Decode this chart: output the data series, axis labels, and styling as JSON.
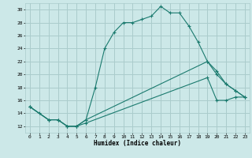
{
  "title": "",
  "xlabel": "Humidex (Indice chaleur)",
  "bg_color": "#cce8e8",
  "grid_color": "#aacccc",
  "line_color": "#1a7a6e",
  "xlim": [
    -0.5,
    23.5
  ],
  "ylim": [
    11,
    31
  ],
  "yticks": [
    12,
    14,
    16,
    18,
    20,
    22,
    24,
    26,
    28,
    30
  ],
  "xticks": [
    0,
    1,
    2,
    3,
    4,
    5,
    6,
    7,
    8,
    9,
    10,
    11,
    12,
    13,
    14,
    15,
    16,
    17,
    18,
    19,
    20,
    21,
    22,
    23
  ],
  "series1_x": [
    0,
    1,
    2,
    3,
    4,
    5,
    6,
    7,
    8,
    9,
    10,
    11,
    12,
    13,
    14,
    15,
    16,
    17,
    18,
    19,
    20,
    21,
    22,
    23
  ],
  "series1_y": [
    15,
    14,
    13,
    13,
    12,
    12,
    13,
    18,
    24,
    26.5,
    28,
    28,
    28.5,
    29,
    30.5,
    29.5,
    29.5,
    27.5,
    25,
    22,
    20,
    18.5,
    17.5,
    16.5
  ],
  "series2_x": [
    0,
    2,
    3,
    4,
    5,
    6,
    19,
    20,
    21,
    22,
    23
  ],
  "series2_y": [
    15,
    13,
    13,
    12,
    12,
    13,
    22,
    20.5,
    18.5,
    17.5,
    16.5
  ],
  "series3_x": [
    0,
    2,
    3,
    4,
    5,
    6,
    19,
    20,
    21,
    22,
    23
  ],
  "series3_y": [
    15,
    13,
    13,
    12,
    12,
    12.5,
    19.5,
    16,
    16,
    16.5,
    16.5
  ]
}
